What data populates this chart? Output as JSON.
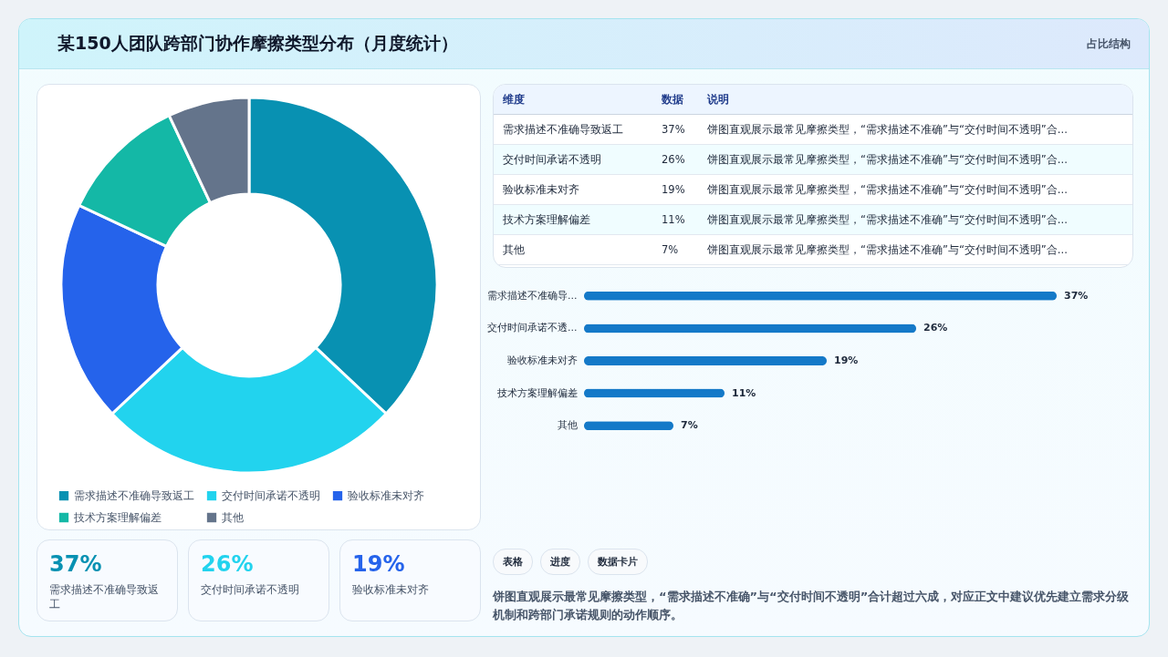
{
  "chart_data": [
    {
      "type": "other",
      "title": "某150人团队跨部门协作摩擦类型分布（月度统计）",
      "subtitle": "占比结构"
    },
    {
      "type": "donut",
      "categories": [
        "需求描述不准确导致返工",
        "交付时间承诺不透明",
        "验收标准未对齐",
        "技术方案理解偏差",
        "其他"
      ],
      "values": [
        37,
        26,
        19,
        11,
        7
      ],
      "colors": [
        "#0891b2",
        "#22d3ee",
        "#2563eb",
        "#14b8a6",
        "#64748b"
      ],
      "legend": "bottom"
    },
    {
      "type": "other",
      "categories": [
        "维度",
        "数据",
        "说明"
      ],
      "y_categories": [
        "需求描述不准确导致返工",
        "交付时间承诺不透明",
        "验收标准未对齐",
        "技术方案理解偏差",
        "其他"
      ],
      "cell_labels": [
        [
          "37%",
          "饼图直观展示最常见摩擦类型，“需求描述不准确”与“交付时间不透明”合..."
        ],
        [
          "26%",
          "饼图直观展示最常见摩擦类型，“需求描述不准确”与“交付时间不透明”合..."
        ],
        [
          "19%",
          "饼图直观展示最常见摩擦类型，“需求描述不准确”与“交付时间不透明”合..."
        ],
        [
          "11%",
          "饼图直观展示最常见摩擦类型，“需求描述不准确”与“交付时间不透明”合..."
        ],
        [
          "7%",
          "饼图直观展示最常见摩擦类型，“需求描述不准确”与“交付时间不透明”合..."
        ]
      ]
    },
    {
      "type": "bar",
      "orientation": "horizontal",
      "categories": [
        "需求描述不准确导...",
        "交付时间承诺不透...",
        "验收标准未对齐",
        "技术方案理解偏差",
        "其他"
      ],
      "values": [
        37,
        26,
        19,
        11,
        7
      ],
      "color": "#1479c8",
      "value_labels": [
        "37%",
        "26%",
        "19%",
        "11%",
        "7%"
      ]
    },
    {
      "type": "other",
      "annotations": [
        "37%",
        "需求描述不准确导致返工",
        "26%",
        "交付时间承诺不透明",
        "19%",
        "验收标准未对齐"
      ],
      "colors": [
        "#0891b2",
        "#22d3ee",
        "#2563eb"
      ]
    },
    {
      "type": "other",
      "categories": [
        "表格",
        "进度",
        "数据卡片"
      ],
      "annotations": [
        "饼图直观展示最常见摩擦类型，“需求描述不准确”与“交付时间不透明”合计超过六成，对应正文中建议优先建立需求分级机制和跨部门承诺规则的动作顺序。"
      ]
    }
  ]
}
